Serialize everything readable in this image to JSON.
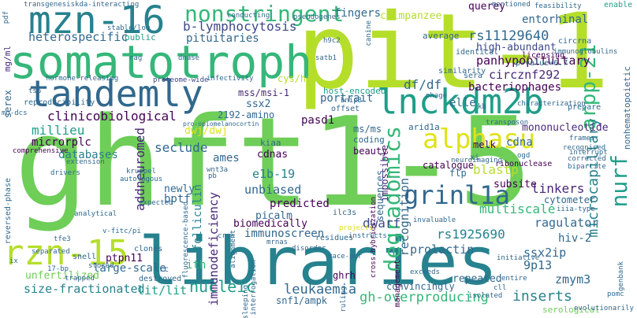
{
  "palette": {
    "yellow": "#dfe318",
    "lime": "#b5de2b",
    "green": "#6ece58",
    "green2": "#35b779",
    "teal": "#1f9e89",
    "teal2": "#26828e",
    "blue": "#31688e",
    "indigo": "#3e4989",
    "purple": "#482878",
    "dark": "#440154"
  },
  "words": {
    "ghft1_5": "ghft1-5",
    "pit1": "pit-1",
    "libraries": "libraries",
    "somatotroph": "somatotroph",
    "tandemly": "tandemly",
    "lnckdm2b": "lnckdm2b",
    "mzn16": "mzn-16",
    "rzn15": "rzn-15",
    "alphasu": "alphasu",
    "grinl1a": "grinl1a",
    "nonstringent": "nonstringent",
    "degradomics": "degradomics",
    "arpp21": "arpp-21",
    "nurf": "nurf",
    "microcapillary": "microcapillary",
    "panhypopituitary": "panhypopituitary",
    "circznf292": "circznf292",
    "rs11129640": "rs11129640",
    "dfdf": "df/df",
    "bacteriophages": "bacteriophages",
    "highabundant": "high-abundant",
    "blymphocytosis": "b-lymphocytosis",
    "heterospecific": "heterospecific",
    "pituitaries": "pituitaries",
    "clinicobiological": "clinicobiological",
    "millieu": "millieu",
    "microrplc": "microrplc",
    "addneuromed": "addneuromed",
    "seclude": "seclude",
    "dwjdwj": "dwj/dwj",
    "ssx2": "ssx2",
    "mssmsi1": "mss/msi-1",
    "amino": "2192-amino",
    "pasd1": "pasd1",
    "portrait": "portrait",
    "elle": "elle",
    "blastp": "blastp",
    "melk": "melk",
    "cdna": "cdna",
    "cdnas": "cdnas",
    "kiaa": "kiaa",
    "databases": "databases",
    "ames": "ames",
    "e1b19": "e1b-19",
    "unbiased": "unbiased",
    "predicted": "predicted",
    "picalm": "picalm",
    "folliculin": "folliculin",
    "bptf": "bptf",
    "immunodeficiency": "immunodeficiency",
    "biomedically": "biomedically",
    "immunoscreen": "immunoscreen",
    "dwarf": "dwarf",
    "rs1925690": "rs1925690",
    "prolactin": "prolactin",
    "ragulator": "ragulator",
    "linkers": "linkers",
    "multiscale": "multiscale",
    "cytometer": "cytometer",
    "subsite": "subsite",
    "recognition": "recognition",
    "sequences": "sequences",
    "impossible": "impossible",
    "mononucleotide": "mononucleotide",
    "fingers": "fingers",
    "chimpanzee": "chimpanzee",
    "entorhinal": "entorhinal",
    "average": "average",
    "querey": "querey",
    "hostencoded": "host-encoded",
    "ptpn11": "ptpn11",
    "largescale": "large-scale",
    "ith": "ith",
    "nucleic": "nucleic",
    "leukaemia": "leukaemia",
    "litlit": "lit/lit",
    "sizefractionated": "size-fractionated",
    "unfertilized": "unfertilized",
    "ghoverproducing": "gh-overproducing",
    "inserts": "inserts",
    "ssx2ip": "ssx2ip",
    "hiv2": "hiv-2",
    "p9p13": "9p13",
    "zmym3": "zmym3",
    "repeated": "repeated",
    "convincingly": "convincingly",
    "ghrh": "ghrh",
    "snf1ampk": "snf1/ampk",
    "newly": "newly",
    "catalogue": "catalogue",
    "flp": "flp",
    "beauty": "beauty",
    "coding": "coding",
    "msms": "ms/ms",
    "arid1a": "arid1a",
    "cyshis": "cys/his",
    "mgml": "mg/ml",
    "serex": "serex",
    "public": "public",
    "serological": "serological",
    "pvalue": "p-value=6.7",
    "licensing": "licensing",
    "identical": "identical",
    "similarity": "similarity",
    "nonhematopoietic": "nonhematopoietic",
    "enable": "enable",
    "transgenesiskda": "transgenesiskda-interacting",
    "stablelow": "stable/low",
    "proteomewide": "proteome-wide",
    "reproducibility": "reproducibility",
    "hormonereleasing": "hormone-releasing",
    "comprehensive": "comprehensive",
    "reversedphase": "reversed-phase",
    "offset": "offset",
    "evolutionarily": "evolutionarily",
    "exceeds": "exceeds",
    "entire": "entire",
    "management": "management",
    "interrogation": "interrogation",
    "crosshybridization": "cross-hybridization",
    "ribonuclease": "ribonuclease",
    "neuroimaging": "neuroimaging",
    "recognised": "recognised",
    "prepare": "prepare",
    "characterization": "characterization",
    "separated": "separated",
    "destroyed": "destroyed",
    "crc": "crc",
    "clones": "clones",
    "snell": "snell",
    "analytical": "analytical",
    "drivers": "drivers",
    "expected": "expected",
    "mrnas": "mrnas",
    "residues": "residues",
    "ilc3s": "ilc3s",
    "invaluable": "invaluable",
    "projects": "projects",
    "instructs": "instructs",
    "racepcr": "race-pcr",
    "disorder": "disorder",
    "ogd": "ogd",
    "xi": "xi",
    "frames": "frames",
    "bipartite": "bipartite",
    "corrected": "corrected",
    "interrupt": "interrupt",
    "iiiatype": "iiia-type",
    "transposon": "transposon",
    "kb": "kb",
    "bnip3": "bnip3",
    "satb1": "satb1",
    "h9c2": "h9c2",
    "circrna": "circrna",
    "immunoglobulins": "immunoglobulins",
    "sera": "sera",
    "phage": "phage",
    "infectivity": "infectivity",
    "rag": "rag",
    "kruppel": "kruppel",
    "autologous": "autologous",
    "wnt3a": "wnt3a",
    "proopiomelanocortin": "pro-opiomelanocortin",
    "fluorescencebased": "fluorescence-based",
    "vfitcpi": "v-fitc/pi",
    "tfe3": "tfe3",
    "p17bp": "17-bp",
    "trapped": "trapped",
    "stored": "stored",
    "extension": "extension",
    "crcs": "crcs",
    "alignment": "alignment",
    "pb": "pb",
    "conducting": "conducting",
    "pseudogenes": "pseudogenes",
    "canine": "canine",
    "mentioned": "mentioned",
    "feasibility": "feasibility",
    "genbank": "genbank",
    "pomc": "pomc",
    "sleeping": "sleeping",
    "ruling": "ruling",
    "isolated": "isolated",
    "cll": "cll",
    "ix": "ix",
    "ts6": "ts6",
    "pdf": "pdf",
    "modcs": "mo-dcs",
    "dnase": "dnase",
    "initiative": "initiative",
    "nolong": "nolong",
    "nitrate": "nitrate",
    "commensalb": "commensal",
    "cdk5": "cdk5",
    "sepd": "sepd",
    "ses": "ses",
    "pml": "pml",
    "apr": "apr",
    "iis": "iis",
    "dnaq": "dna",
    "hsp": "hsp",
    "cll2": "ch",
    "ecs": "ecs"
  }
}
